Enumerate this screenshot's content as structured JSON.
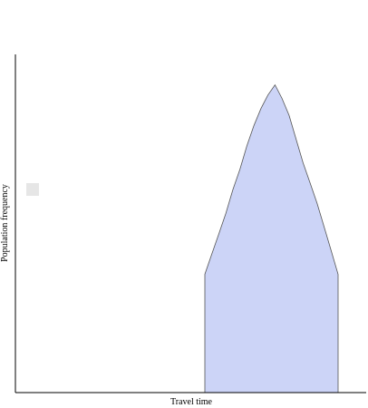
{
  "chart_data": {
    "type": "area",
    "title": "",
    "xlabel": "Travel time",
    "ylabel": "Population frequency",
    "xlim": [
      0,
      100
    ],
    "ylim": [
      0,
      100
    ],
    "grid": false,
    "legend": {
      "placement": "left",
      "entries": [
        ""
      ]
    },
    "series": [
      {
        "color": "#ccd4f7",
        "stroke": "#555555",
        "x": [
          54,
          56,
          58,
          60,
          62,
          64,
          66,
          68,
          70,
          72,
          74,
          76,
          78,
          80,
          82,
          84,
          86,
          88,
          90,
          92
        ],
        "values": [
          35,
          41,
          47,
          53,
          60,
          66,
          73,
          79,
          84,
          88,
          91,
          87,
          82,
          75,
          68,
          62,
          56,
          49,
          42,
          35
        ]
      }
    ]
  }
}
